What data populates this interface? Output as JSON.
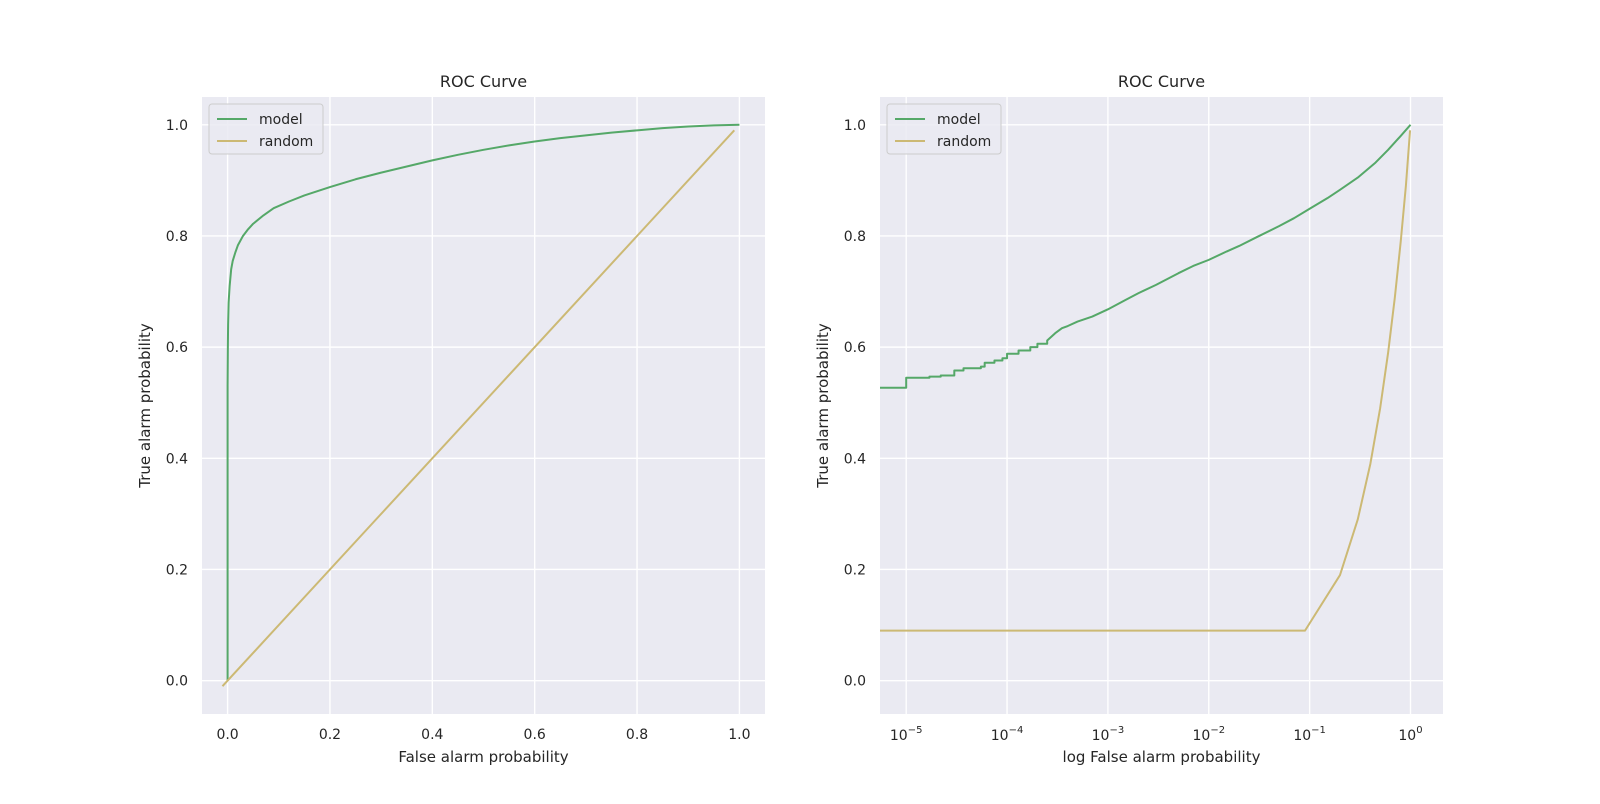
{
  "chart_data": [
    {
      "type": "line",
      "title": "ROC Curve",
      "xlabel": "False alarm probability",
      "ylabel": "True alarm probability",
      "xscale": "linear",
      "xlim": [
        -0.05,
        1.05
      ],
      "ylim": [
        -0.06,
        1.05
      ],
      "xticks": [
        0.0,
        0.2,
        0.4,
        0.6,
        0.8,
        1.0
      ],
      "xtick_labels": [
        "0.0",
        "0.2",
        "0.4",
        "0.6",
        "0.8",
        "1.0"
      ],
      "yticks": [
        0.0,
        0.2,
        0.4,
        0.6,
        0.8,
        1.0
      ],
      "ytick_labels": [
        "0.0",
        "0.2",
        "0.4",
        "0.6",
        "0.8",
        "1.0"
      ],
      "grid": true,
      "legend_position": "upper-left",
      "series": [
        {
          "name": "model",
          "color": "#55a868",
          "x": [
            0.0,
            0.0,
            0.0005,
            0.001,
            0.002,
            0.004,
            0.007,
            0.01,
            0.015,
            0.02,
            0.03,
            0.04,
            0.05,
            0.07,
            0.09,
            0.12,
            0.15,
            0.2,
            0.25,
            0.3,
            0.35,
            0.4,
            0.45,
            0.5,
            0.55,
            0.6,
            0.65,
            0.7,
            0.75,
            0.8,
            0.85,
            0.9,
            0.95,
            1.0
          ],
          "y": [
            0.0,
            0.53,
            0.6,
            0.64,
            0.68,
            0.71,
            0.74,
            0.755,
            0.77,
            0.783,
            0.8,
            0.812,
            0.822,
            0.837,
            0.85,
            0.862,
            0.873,
            0.888,
            0.902,
            0.914,
            0.925,
            0.936,
            0.946,
            0.955,
            0.963,
            0.97,
            0.976,
            0.981,
            0.986,
            0.99,
            0.994,
            0.997,
            0.999,
            1.0
          ]
        },
        {
          "name": "random",
          "color": "#ccb974",
          "x": [
            -0.01,
            0.99
          ],
          "y": [
            -0.01,
            0.99
          ]
        }
      ]
    },
    {
      "type": "line",
      "title": "ROC Curve",
      "xlabel": "log False alarm probability",
      "ylabel": "True alarm probability",
      "xscale": "log",
      "xlim": [
        5.5e-06,
        2.1
      ],
      "ylim": [
        -0.06,
        1.05
      ],
      "xticks": [
        1e-05,
        0.0001,
        0.001,
        0.01,
        0.1,
        1.0
      ],
      "xtick_labels": [
        {
          "base": "10",
          "exp": "−5"
        },
        {
          "base": "10",
          "exp": "−4"
        },
        {
          "base": "10",
          "exp": "−3"
        },
        {
          "base": "10",
          "exp": "−2"
        },
        {
          "base": "10",
          "exp": "−1"
        },
        {
          "base": "10",
          "exp": "0"
        }
      ],
      "yticks": [
        0.0,
        0.2,
        0.4,
        0.6,
        0.8,
        1.0
      ],
      "ytick_labels": [
        "0.0",
        "0.2",
        "0.4",
        "0.6",
        "0.8",
        "1.0"
      ],
      "grid": true,
      "legend_position": "upper-left",
      "series": [
        {
          "name": "model",
          "color": "#55a868",
          "x": [
            5.5e-06,
            1e-05,
            1e-05,
            1.7e-05,
            1.7e-05,
            2.2e-05,
            2.2e-05,
            3e-05,
            3e-05,
            3.7e-05,
            3.7e-05,
            5.5e-05,
            5.5e-05,
            6e-05,
            6e-05,
            7.5e-05,
            7.5e-05,
            9e-05,
            9e-05,
            0.0001,
            0.0001,
            0.00013,
            0.00013,
            0.00017,
            0.00017,
            0.0002,
            0.0002,
            0.00025,
            0.00025,
            0.0003,
            0.00035,
            0.0004,
            0.0005,
            0.0007,
            0.001,
            0.0015,
            0.002,
            0.003,
            0.005,
            0.007,
            0.01,
            0.015,
            0.02,
            0.03,
            0.05,
            0.07,
            0.1,
            0.15,
            0.2,
            0.3,
            0.45,
            0.6,
            0.8,
            1.0
          ],
          "y": [
            0.527,
            0.527,
            0.545,
            0.545,
            0.547,
            0.547,
            0.549,
            0.549,
            0.558,
            0.558,
            0.562,
            0.562,
            0.565,
            0.565,
            0.572,
            0.572,
            0.576,
            0.576,
            0.58,
            0.58,
            0.588,
            0.588,
            0.594,
            0.594,
            0.6,
            0.6,
            0.606,
            0.606,
            0.612,
            0.625,
            0.634,
            0.638,
            0.646,
            0.655,
            0.668,
            0.685,
            0.697,
            0.712,
            0.733,
            0.746,
            0.757,
            0.772,
            0.782,
            0.798,
            0.818,
            0.832,
            0.849,
            0.868,
            0.883,
            0.905,
            0.932,
            0.955,
            0.98,
            1.0
          ]
        },
        {
          "name": "random",
          "color": "#ccb974",
          "x": [
            5.5e-06,
            0.09,
            0.2,
            0.3,
            0.4,
            0.5,
            0.6,
            0.7,
            0.8,
            0.9,
            0.99
          ],
          "y": [
            0.09,
            0.09,
            0.19,
            0.29,
            0.39,
            0.49,
            0.59,
            0.69,
            0.79,
            0.89,
            0.99
          ]
        }
      ]
    }
  ]
}
